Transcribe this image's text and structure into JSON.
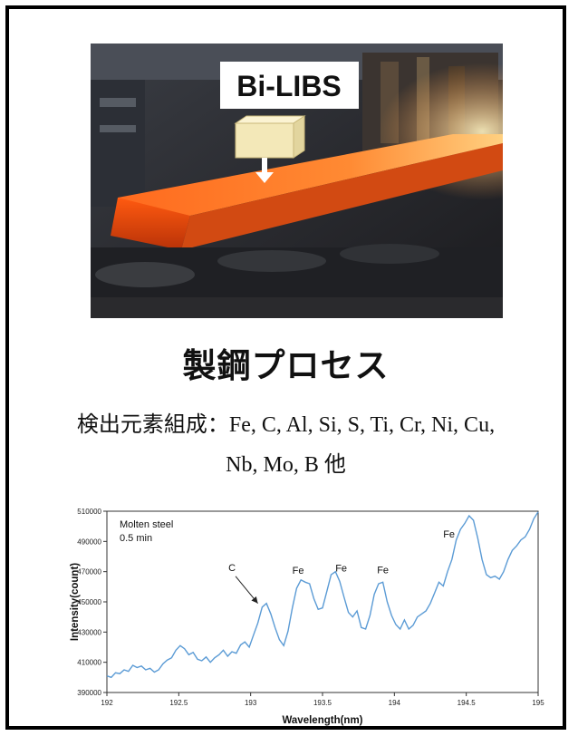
{
  "photo": {
    "label": "Bi-LIBS"
  },
  "title": "製鋼プロセス",
  "elements_line1": "検出元素組成：Fe, C, Al, Si, S, Ti, Cr, Ni, Cu,",
  "elements_line2": "Nb, Mo, B 他",
  "colors": {
    "line": "#5b9bd5",
    "slab": "#ff7a2a",
    "label_box": "#ffffff",
    "probe_box": "#f3e8b8"
  },
  "chart_data": {
    "type": "line",
    "title": "",
    "xlabel": "Wavelength(nm)",
    "ylabel": "Intensity(count)",
    "xlim": [
      192,
      195
    ],
    "ylim": [
      390000,
      510000
    ],
    "xticks": [
      "192",
      "192.5",
      "193",
      "193.5",
      "194",
      "194.5",
      "195"
    ],
    "yticks": [
      "390000",
      "410000",
      "430000",
      "450000",
      "470000",
      "490000",
      "510000"
    ],
    "inset_text": [
      "Molten steel",
      "0.5 min"
    ],
    "annotations": [
      {
        "text": "C",
        "x": 192.87,
        "y": 470500,
        "arrow_to": [
          193.05,
          449000
        ]
      },
      {
        "text": "Fe",
        "x": 193.33,
        "y": 468500
      },
      {
        "text": "Fe",
        "x": 193.63,
        "y": 470000
      },
      {
        "text": "Fe",
        "x": 193.92,
        "y": 469000
      },
      {
        "text": "Fe",
        "x": 194.38,
        "y": 492500
      }
    ],
    "series": [
      {
        "x": [
          192.0,
          192.03,
          192.06,
          192.09,
          192.12,
          192.15,
          192.18,
          192.21,
          192.24,
          192.27,
          192.3,
          192.33,
          192.36,
          192.39,
          192.42,
          192.45,
          192.48,
          192.51,
          192.54,
          192.57,
          192.6,
          192.63,
          192.66,
          192.69,
          192.72,
          192.75,
          192.78,
          192.81,
          192.84,
          192.87,
          192.9,
          192.93,
          192.96,
          192.99,
          193.02,
          193.05,
          193.08,
          193.11,
          193.14,
          193.17,
          193.2,
          193.23,
          193.26,
          193.29,
          193.32,
          193.35,
          193.38,
          193.41,
          193.44,
          193.47,
          193.5,
          193.53,
          193.56,
          193.59,
          193.62,
          193.65,
          193.68,
          193.71,
          193.74,
          193.77,
          193.8,
          193.83,
          193.86,
          193.89,
          193.92,
          193.95,
          193.98,
          194.01,
          194.04,
          194.07,
          194.1,
          194.13,
          194.16,
          194.19,
          194.22,
          194.25,
          194.28,
          194.31,
          194.34,
          194.37,
          194.4,
          194.43,
          194.46,
          194.49,
          194.52,
          194.55,
          194.58,
          194.61,
          194.64,
          194.67,
          194.7,
          194.73,
          194.76,
          194.79,
          194.82,
          194.85,
          194.88,
          194.91,
          194.94,
          194.97,
          195.0
        ],
        "y": [
          401000,
          400000,
          403000,
          402500,
          405000,
          404000,
          408000,
          406500,
          407500,
          405000,
          406000,
          403500,
          405000,
          409000,
          411500,
          413000,
          418000,
          421000,
          419000,
          415000,
          416500,
          412000,
          411000,
          413500,
          410000,
          413000,
          415000,
          418000,
          414000,
          417000,
          416000,
          421500,
          423500,
          420000,
          428000,
          436000,
          446500,
          449000,
          442000,
          433000,
          425000,
          421000,
          430500,
          446000,
          459000,
          464500,
          463000,
          462000,
          452000,
          445000,
          446000,
          457000,
          468000,
          470000,
          463500,
          453000,
          443000,
          440000,
          444000,
          433000,
          432000,
          441000,
          455000,
          462000,
          463000,
          450000,
          441000,
          435000,
          432000,
          438000,
          432000,
          434500,
          440000,
          442000,
          444000,
          449000,
          456000,
          463000,
          460500,
          470000,
          478000,
          491000,
          498000,
          502000,
          507000,
          504000,
          492000,
          478000,
          468000,
          466000,
          467000,
          465000,
          470000,
          478000,
          484000,
          487000,
          491000,
          493000,
          498000,
          505000,
          509500
        ]
      }
    ]
  }
}
